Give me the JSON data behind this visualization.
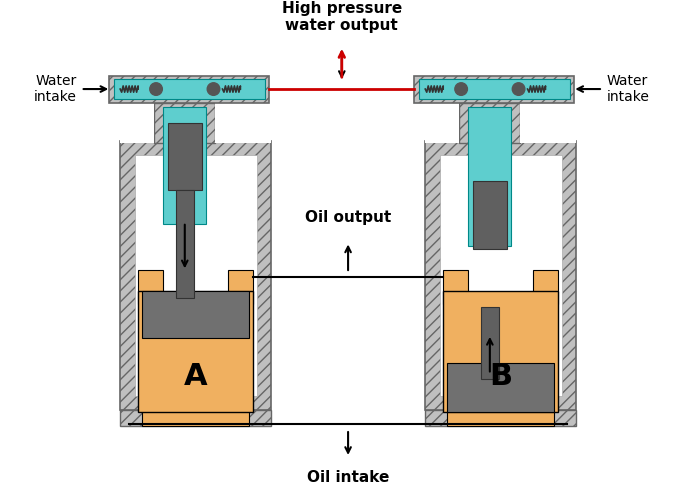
{
  "bg_color": "#ffffff",
  "gray_hatch": "#c0c0c0",
  "gray_dark": "#909090",
  "cyan": "#5ecece",
  "dark_gray": "#606060",
  "orange": "#f0b060",
  "outline": "#000000",
  "red": "#cc0000",
  "label_A": "A",
  "label_B": "B",
  "text_water_intake": "Water\nintake",
  "text_hp_water": "High pressure\nwater output",
  "text_oil_output": "Oil output",
  "text_oil_intake": "Oil intake",
  "figsize": [
    6.85,
    4.84
  ],
  "dpi": 100
}
